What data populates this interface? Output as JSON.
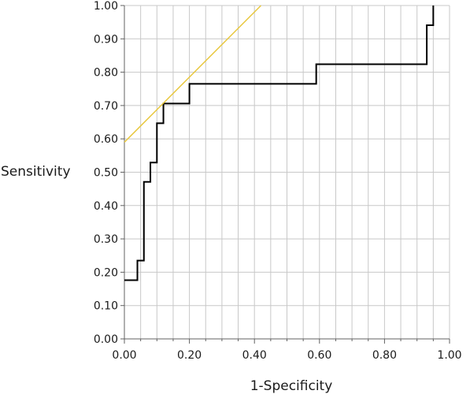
{
  "chart_data": {
    "type": "line",
    "title": "",
    "xlabel": "1-Specificity",
    "ylabel": "Sensitivity",
    "xlim": [
      0,
      1
    ],
    "ylim": [
      0,
      1
    ],
    "grid": true,
    "xticks": [
      "0.00",
      "0.20",
      "0.40",
      "0.60",
      "0.80",
      "1.00"
    ],
    "yticks": [
      "0.00",
      "0.10",
      "0.20",
      "0.30",
      "0.40",
      "0.50",
      "0.60",
      "0.70",
      "0.80",
      "0.90",
      "1.00"
    ],
    "series": [
      {
        "color": "#000000",
        "step": true,
        "x": [
          0.0,
          0.04,
          0.04,
          0.06,
          0.06,
          0.08,
          0.08,
          0.1,
          0.1,
          0.12,
          0.12,
          0.2,
          0.2,
          0.59,
          0.59,
          0.93,
          0.93,
          0.95,
          0.95
        ],
        "y": [
          0.176,
          0.176,
          0.235,
          0.235,
          0.471,
          0.471,
          0.529,
          0.529,
          0.647,
          0.647,
          0.706,
          0.706,
          0.765,
          0.765,
          0.824,
          0.824,
          0.941,
          0.941,
          1.0
        ]
      },
      {
        "color": "#e8c840",
        "step": false,
        "x": [
          0.0,
          0.42
        ],
        "y": [
          0.59,
          1.0
        ]
      }
    ]
  }
}
